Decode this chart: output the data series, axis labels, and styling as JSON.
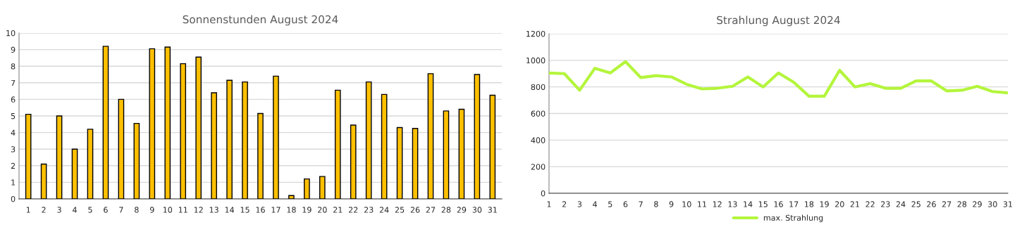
{
  "chart_data": [
    {
      "type": "bar",
      "title": "Sonnenstunden August 2024",
      "categories": [
        "1",
        "2",
        "3",
        "4",
        "5",
        "6",
        "7",
        "8",
        "9",
        "10",
        "11",
        "12",
        "13",
        "14",
        "15",
        "16",
        "17",
        "18",
        "19",
        "20",
        "21",
        "22",
        "23",
        "24",
        "25",
        "26",
        "27",
        "28",
        "29",
        "30",
        "31"
      ],
      "values": [
        5.1,
        2.1,
        5.0,
        3.0,
        4.2,
        9.2,
        6.0,
        4.55,
        9.05,
        9.15,
        8.15,
        8.55,
        6.4,
        7.15,
        7.05,
        5.15,
        7.4,
        0.2,
        1.2,
        1.35,
        6.55,
        4.45,
        7.05,
        6.3,
        4.3,
        4.25,
        7.55,
        5.3,
        5.4,
        7.5,
        6.25
      ],
      "color": "#ffc000",
      "ylim": [
        0,
        10
      ],
      "yticks": [
        0,
        1,
        2,
        3,
        4,
        5,
        6,
        7,
        8,
        9,
        10
      ],
      "grid": "y"
    },
    {
      "type": "line",
      "title": "Strahlung August 2024",
      "x": [
        1,
        2,
        3,
        4,
        5,
        6,
        7,
        8,
        9,
        10,
        11,
        12,
        13,
        14,
        15,
        16,
        17,
        18,
        19,
        20,
        21,
        22,
        23,
        24,
        25,
        26,
        27,
        28,
        29,
        30,
        31
      ],
      "series": [
        {
          "name": "max. Strahlung",
          "color": "#b4f53c",
          "values": [
            905,
            900,
            775,
            940,
            905,
            990,
            870,
            885,
            875,
            820,
            785,
            790,
            805,
            875,
            800,
            905,
            835,
            730,
            730,
            925,
            800,
            825,
            790,
            790,
            845,
            845,
            770,
            775,
            805,
            765,
            755
          ]
        }
      ],
      "xlim": [
        1,
        31
      ],
      "xticks": [
        1,
        2,
        3,
        4,
        5,
        6,
        7,
        8,
        9,
        10,
        11,
        12,
        13,
        14,
        15,
        16,
        17,
        18,
        19,
        20,
        21,
        22,
        23,
        24,
        25,
        26,
        27,
        28,
        29,
        30,
        31
      ],
      "ylim": [
        0,
        1200
      ],
      "yticks": [
        0,
        200,
        400,
        600,
        800,
        1000,
        1200
      ],
      "grid": "y",
      "legend": "bottom"
    }
  ]
}
